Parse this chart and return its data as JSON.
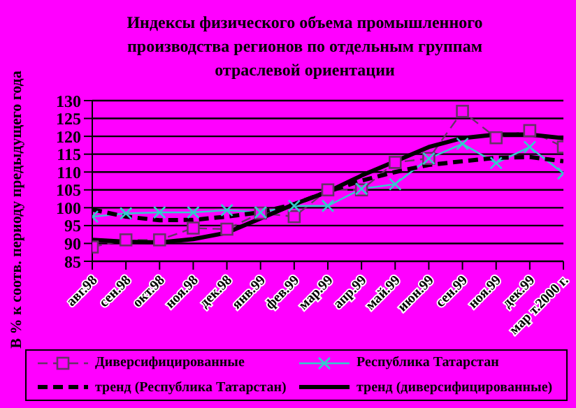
{
  "chart_data": {
    "type": "line",
    "title": "Индексы физического объема промышленного производства регионов  по отдельным группам отраслевой ориентации",
    "ylabel": "В % к соотв. периоду предыдущего года",
    "categories": [
      "авг.98",
      "сен.98",
      "окт.98",
      "ноя.98",
      "дек.98",
      "янв.99",
      "фев.99",
      "мар.99",
      "апр.99",
      "май.99",
      "июн.99",
      "сен.99",
      "ноя.99",
      "дек.99",
      "мар т.2000 г."
    ],
    "series": [
      {
        "name": "Диверсифицированные",
        "color": "#663366",
        "marker": "square",
        "line_style": "dashed",
        "values": [
          89,
          91,
          91,
          94.3,
          94,
          98.5,
          97.5,
          105,
          105,
          112.7,
          113.8,
          127,
          119.6,
          121.6,
          117
        ]
      },
      {
        "name": "Республика Татарстан",
        "color": "#33cccc",
        "marker": "cross",
        "line_style": "solid",
        "values": [
          97.5,
          98.4,
          98.7,
          98.7,
          99.3,
          98.7,
          100.5,
          100.5,
          105.3,
          106.6,
          113.8,
          117.9,
          112.5,
          117,
          109.6
        ]
      },
      {
        "name": "тренд (Республика Татарстан)",
        "color": "#000000",
        "marker": "none",
        "line_style": "dashed",
        "values": [
          99.5,
          97.5,
          96.5,
          96.6,
          97.5,
          98.7,
          101,
          104.5,
          107.6,
          110,
          112,
          113,
          114,
          114.2,
          113
        ]
      },
      {
        "name": "тренд (диверсифицированные)",
        "color": "#000000",
        "marker": "none",
        "line_style": "solid",
        "values": [
          91,
          90.5,
          90.3,
          91.2,
          93,
          97,
          101,
          104.5,
          109,
          113,
          117,
          119.5,
          120.5,
          120.5,
          119.5
        ]
      }
    ],
    "ylim": [
      85,
      130
    ],
    "yticks": [
      85,
      90,
      95,
      100,
      105,
      110,
      115,
      120,
      125,
      130
    ],
    "grid": "y",
    "legend": "bottom"
  }
}
